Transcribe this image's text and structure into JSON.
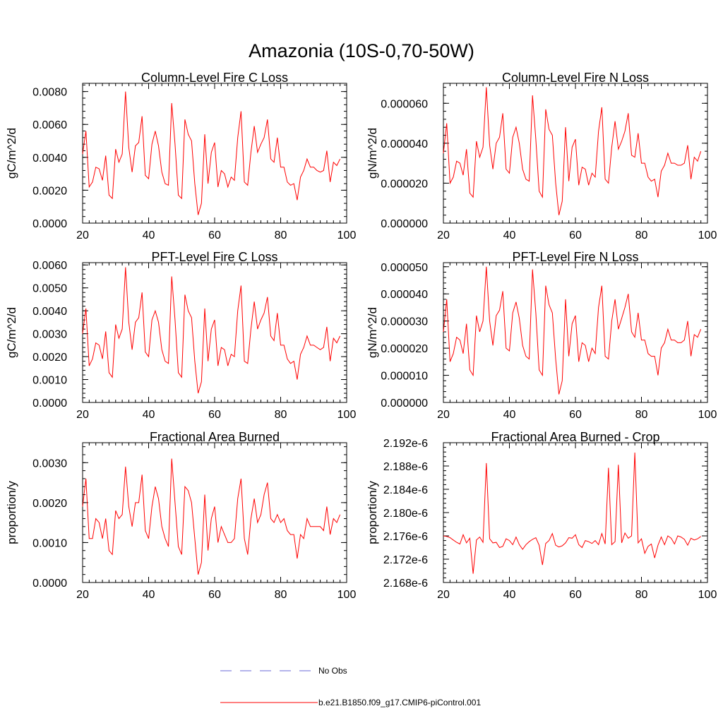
{
  "figure_title": "Amazonia (10S-0,70-50W)",
  "legend": [
    {
      "label": "No Obs",
      "color": "#6a6ad8",
      "style": "dashed"
    },
    {
      "label": "b.e21.B1850.f09_g17.CMIP6-piControl.001",
      "color": "#ff0000",
      "style": "solid"
    }
  ],
  "chart_data": [
    {
      "type": "line",
      "title": "Column-Level Fire C Loss",
      "ylabel": "gC/m^2/d",
      "xlim": [
        20,
        100
      ],
      "ylim": [
        0,
        0.0085
      ],
      "x_ticks": [
        20,
        40,
        60,
        80,
        100
      ],
      "x_tick_labels": [
        "20",
        "40",
        "60",
        "80",
        "100"
      ],
      "y_ticks": [
        0,
        0.002,
        0.004,
        0.006,
        0.008
      ],
      "y_tick_labels": [
        "0.0000",
        "0.0020",
        "0.0040",
        "0.0060",
        "0.0080"
      ],
      "x_start": 20,
      "series": [
        {
          "name": "b.e21.B1850.f09_g17.CMIP6-piControl.001",
          "color": "#ff0000",
          "values": [
            0.0042,
            0.0056,
            0.0022,
            0.0025,
            0.0034,
            0.0033,
            0.0026,
            0.0041,
            0.0017,
            0.0015,
            0.0045,
            0.0037,
            0.0042,
            0.008,
            0.0046,
            0.0031,
            0.0047,
            0.0049,
            0.0065,
            0.0029,
            0.0027,
            0.0048,
            0.0056,
            0.0047,
            0.0031,
            0.0024,
            0.0023,
            0.0073,
            0.0048,
            0.0017,
            0.0015,
            0.0063,
            0.0054,
            0.005,
            0.0024,
            0.0005,
            0.0012,
            0.0054,
            0.0024,
            0.0043,
            0.0049,
            0.0022,
            0.0032,
            0.003,
            0.0022,
            0.0028,
            0.0026,
            0.0052,
            0.0068,
            0.0025,
            0.0023,
            0.0043,
            0.0059,
            0.0043,
            0.0048,
            0.0052,
            0.0063,
            0.0039,
            0.0037,
            0.0052,
            0.0034,
            0.0034,
            0.0025,
            0.0023,
            0.0024,
            0.0014,
            0.0028,
            0.0032,
            0.0039,
            0.0034,
            0.0034,
            0.0032,
            0.0031,
            0.0032,
            0.0044,
            0.0025,
            0.0037,
            0.0035,
            0.0039
          ]
        }
      ]
    },
    {
      "type": "line",
      "title": "Column-Level Fire N Loss",
      "ylabel": "gN/m^2/d",
      "xlim": [
        20,
        100
      ],
      "ylim": [
        0,
        7e-05
      ],
      "x_ticks": [
        20,
        40,
        60,
        80,
        100
      ],
      "x_tick_labels": [
        "20",
        "40",
        "60",
        "80",
        "100"
      ],
      "y_ticks": [
        0,
        2e-05,
        4e-05,
        6e-05
      ],
      "y_tick_labels": [
        "0.000000",
        "0.000020",
        "0.000040",
        "0.000060"
      ],
      "x_start": 20,
      "series": [
        {
          "name": "b.e21.B1850.f09_g17.CMIP6-piControl.001",
          "color": "#ff0000",
          "values": [
            3.5e-05,
            5e-05,
            2e-05,
            2.3e-05,
            3.1e-05,
            3e-05,
            2.4e-05,
            3.7e-05,
            1.5e-05,
            1.3e-05,
            4.1e-05,
            3.3e-05,
            3.8e-05,
            6.8e-05,
            3.9e-05,
            2.7e-05,
            4e-05,
            4.3e-05,
            5.5e-05,
            2.7e-05,
            2.5e-05,
            4.3e-05,
            4.8e-05,
            4e-05,
            2.7e-05,
            2.2e-05,
            2.1e-05,
            6.4e-05,
            4.2e-05,
            1.6e-05,
            1.3e-05,
            5.7e-05,
            4.7e-05,
            4.4e-05,
            2e-05,
            4e-06,
            1.1e-05,
            4.8e-05,
            2.1e-05,
            3.8e-05,
            4.2e-05,
            1.9e-05,
            2.8e-05,
            2.7e-05,
            1.9e-05,
            2.5e-05,
            2.3e-05,
            4.6e-05,
            5.8e-05,
            2.2e-05,
            2e-05,
            3.8e-05,
            5.1e-05,
            3.7e-05,
            4.1e-05,
            4.6e-05,
            5.5e-05,
            3.4e-05,
            3.3e-05,
            4.5e-05,
            3e-05,
            3e-05,
            2.3e-05,
            2.1e-05,
            2.2e-05,
            1.3e-05,
            2.6e-05,
            2.9e-05,
            3.5e-05,
            3e-05,
            3e-05,
            2.9e-05,
            2.9e-05,
            3e-05,
            3.9e-05,
            2.2e-05,
            3.3e-05,
            3.1e-05,
            3.6e-05
          ]
        }
      ]
    },
    {
      "type": "line",
      "title": "PFT-Level Fire C Loss",
      "ylabel": "gC/m^2/d",
      "xlim": [
        20,
        100
      ],
      "ylim": [
        0,
        0.0061
      ],
      "x_ticks": [
        20,
        40,
        60,
        80,
        100
      ],
      "x_tick_labels": [
        "20",
        "40",
        "60",
        "80",
        "100"
      ],
      "y_ticks": [
        0,
        0.001,
        0.002,
        0.003,
        0.004,
        0.005,
        0.006
      ],
      "y_tick_labels": [
        "0.0000",
        "0.0010",
        "0.0020",
        "0.0030",
        "0.0040",
        "0.0050",
        "0.0060"
      ],
      "x_start": 20,
      "series": [
        {
          "name": "b.e21.B1850.f09_g17.CMIP6-piControl.001",
          "color": "#ff0000",
          "values": [
            0.003,
            0.0041,
            0.0016,
            0.0019,
            0.0026,
            0.0025,
            0.0019,
            0.0031,
            0.0013,
            0.0011,
            0.0034,
            0.0028,
            0.0032,
            0.0059,
            0.0035,
            0.0023,
            0.0035,
            0.0037,
            0.0048,
            0.0022,
            0.002,
            0.0036,
            0.004,
            0.0035,
            0.0023,
            0.0018,
            0.0017,
            0.0055,
            0.0036,
            0.0013,
            0.0011,
            0.0047,
            0.004,
            0.0037,
            0.0018,
            0.0004,
            0.0009,
            0.0041,
            0.0018,
            0.0032,
            0.0036,
            0.0016,
            0.0024,
            0.0023,
            0.0016,
            0.0021,
            0.002,
            0.004,
            0.0051,
            0.0018,
            0.0017,
            0.0032,
            0.0044,
            0.0032,
            0.0036,
            0.0039,
            0.0046,
            0.0029,
            0.0027,
            0.0039,
            0.0025,
            0.0025,
            0.0019,
            0.0017,
            0.0018,
            0.001,
            0.0021,
            0.0024,
            0.0029,
            0.0025,
            0.0025,
            0.0024,
            0.0023,
            0.0024,
            0.0033,
            0.0018,
            0.0028,
            0.0026,
            0.0029
          ]
        }
      ]
    },
    {
      "type": "line",
      "title": "PFT-Level Fire N Loss",
      "ylabel": "gN/m^2/d",
      "xlim": [
        20,
        100
      ],
      "ylim": [
        0,
        5.15e-05
      ],
      "x_ticks": [
        20,
        40,
        60,
        80,
        100
      ],
      "x_tick_labels": [
        "20",
        "40",
        "60",
        "80",
        "100"
      ],
      "y_ticks": [
        0,
        1e-05,
        2e-05,
        3e-05,
        4e-05,
        5e-05
      ],
      "y_tick_labels": [
        "0.000000",
        "0.000010",
        "0.000020",
        "0.000030",
        "0.000040",
        "0.000050"
      ],
      "x_start": 20,
      "series": [
        {
          "name": "b.e21.B1850.f09_g17.CMIP6-piControl.001",
          "color": "#ff0000",
          "values": [
            2.6e-05,
            3.8e-05,
            1.5e-05,
            1.8e-05,
            2.4e-05,
            2.3e-05,
            1.8e-05,
            2.9e-05,
            1.2e-05,
            1e-05,
            3.2e-05,
            2.6e-05,
            3e-05,
            5e-05,
            3e-05,
            2.1e-05,
            3.2e-05,
            3.4e-05,
            4.1e-05,
            2e-05,
            1.9e-05,
            3.3e-05,
            3.7e-05,
            3.1e-05,
            2.1e-05,
            1.7e-05,
            1.6e-05,
            4.9e-05,
            3.3e-05,
            1.2e-05,
            1e-05,
            4.3e-05,
            3.6e-05,
            3.3e-05,
            1.6e-05,
            3e-06,
            8e-06,
            3.8e-05,
            1.7e-05,
            2.9e-05,
            3.2e-05,
            1.5e-05,
            2.2e-05,
            2.1e-05,
            1.5e-05,
            2e-05,
            1.8e-05,
            3.5e-05,
            4.3e-05,
            1.7e-05,
            1.6e-05,
            3e-05,
            3.8e-05,
            2.7e-05,
            3.1e-05,
            3.5e-05,
            4e-05,
            2.6e-05,
            2.4e-05,
            3.3e-05,
            2.3e-05,
            2.3e-05,
            1.8e-05,
            1.7e-05,
            1.7e-05,
            1e-05,
            2e-05,
            2.2e-05,
            2.7e-05,
            2.3e-05,
            2.3e-05,
            2.2e-05,
            2.2e-05,
            2.3e-05,
            3e-05,
            1.7e-05,
            2.5e-05,
            2.4e-05,
            2.7e-05
          ]
        }
      ]
    },
    {
      "type": "line",
      "title": "Fractional Area Burned",
      "ylabel": "proportion/y",
      "xlim": [
        20,
        100
      ],
      "ylim": [
        0,
        0.0035
      ],
      "x_ticks": [
        20,
        40,
        60,
        80,
        100
      ],
      "x_tick_labels": [
        "20",
        "40",
        "60",
        "80",
        "100"
      ],
      "y_ticks": [
        0,
        0.001,
        0.002,
        0.003
      ],
      "y_tick_labels": [
        "0.0000",
        "0.0010",
        "0.0020",
        "0.0030"
      ],
      "x_start": 20,
      "series": [
        {
          "name": "b.e21.B1850.f09_g17.CMIP6-piControl.001",
          "color": "#ff0000",
          "values": [
            0.0019,
            0.0026,
            0.0011,
            0.0011,
            0.0016,
            0.0015,
            0.0011,
            0.0016,
            0.0008,
            0.0007,
            0.0018,
            0.0016,
            0.0017,
            0.0029,
            0.0019,
            0.0014,
            0.002,
            0.002,
            0.0027,
            0.0013,
            0.0011,
            0.0019,
            0.0024,
            0.0021,
            0.0014,
            0.0011,
            0.0009,
            0.0031,
            0.002,
            0.0009,
            0.0007,
            0.0024,
            0.0023,
            0.002,
            0.0011,
            0.0002,
            0.0005,
            0.0022,
            0.0008,
            0.0016,
            0.0019,
            0.001,
            0.0014,
            0.0012,
            0.001,
            0.001,
            0.0011,
            0.0021,
            0.0026,
            0.0011,
            0.0007,
            0.0016,
            0.0021,
            0.0015,
            0.0017,
            0.0022,
            0.0025,
            0.0016,
            0.0015,
            0.0017,
            0.0015,
            0.0016,
            0.0013,
            0.0012,
            0.0012,
            0.0006,
            0.0012,
            0.0011,
            0.0016,
            0.0014,
            0.0014,
            0.0014,
            0.0014,
            0.0013,
            0.0019,
            0.0012,
            0.0016,
            0.0015,
            0.0017
          ]
        }
      ]
    },
    {
      "type": "line",
      "title": "Fractional Area Burned - Crop",
      "ylabel": "proportion/y",
      "xlim": [
        20,
        100
      ],
      "ylim": [
        2.168e-06,
        2.192e-06
      ],
      "x_ticks": [
        20,
        40,
        60,
        80,
        100
      ],
      "x_tick_labels": [
        "20",
        "40",
        "60",
        "80",
        "100"
      ],
      "y_ticks": [
        2.168e-06,
        2.172e-06,
        2.176e-06,
        2.18e-06,
        2.184e-06,
        2.188e-06,
        2.192e-06
      ],
      "y_tick_labels": [
        "2.168e-6",
        "2.172e-6",
        "2.176e-6",
        "2.180e-6",
        "2.184e-6",
        "2.188e-6",
        "2.192e-6"
      ],
      "x_start": 20,
      "series": [
        {
          "name": "b.e21.B1850.f09_g17.CMIP6-piControl.001",
          "color": "#ff0000",
          "values": [
            2.176e-06,
            2.1759e-06,
            2.1757e-06,
            2.1753e-06,
            2.1749e-06,
            2.1746e-06,
            2.1762e-06,
            2.1748e-06,
            2.1756e-06,
            2.1695e-06,
            2.1753e-06,
            2.1758e-06,
            2.1749e-06,
            2.1885e-06,
            2.1755e-06,
            2.1748e-06,
            2.1749e-06,
            2.174e-06,
            2.1742e-06,
            2.1755e-06,
            2.1752e-06,
            2.1745e-06,
            2.1758e-06,
            2.1745e-06,
            2.1737e-06,
            2.1745e-06,
            2.175e-06,
            2.1754e-06,
            2.1757e-06,
            2.1744e-06,
            2.171e-06,
            2.1747e-06,
            2.1752e-06,
            2.1764e-06,
            2.1744e-06,
            2.1741e-06,
            2.1743e-06,
            2.1748e-06,
            2.1757e-06,
            2.1756e-06,
            2.1762e-06,
            2.1745e-06,
            2.174e-06,
            2.1752e-06,
            2.175e-06,
            2.1747e-06,
            2.1752e-06,
            2.1745e-06,
            2.1764e-06,
            2.1746e-06,
            2.1877e-06,
            2.1745e-06,
            2.175e-06,
            2.1882e-06,
            2.1748e-06,
            2.1765e-06,
            2.1756e-06,
            2.176e-06,
            2.1903e-06,
            2.1748e-06,
            2.1755e-06,
            2.173e-06,
            2.1742e-06,
            2.1746e-06,
            2.1722e-06,
            2.1744e-06,
            2.1758e-06,
            2.1745e-06,
            2.176e-06,
            2.1756e-06,
            2.1746e-06,
            2.176e-06,
            2.1758e-06,
            2.1754e-06,
            2.1744e-06,
            2.1756e-06,
            2.1753e-06,
            2.1755e-06,
            2.1759e-06
          ]
        }
      ]
    }
  ]
}
